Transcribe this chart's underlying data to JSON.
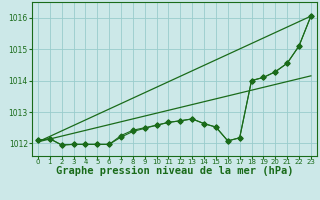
{
  "background_color": "#cce8e8",
  "plot_bg_color": "#cce8e8",
  "grid_color": "#99cccc",
  "line_color": "#1a6b1a",
  "xlabel": "Graphe pression niveau de la mer (hPa)",
  "xlabel_fontsize": 7.5,
  "ylim": [
    1011.6,
    1016.5
  ],
  "xlim": [
    -0.5,
    23.5
  ],
  "yticks": [
    1012,
    1013,
    1014,
    1015,
    1016
  ],
  "xticks": [
    0,
    1,
    2,
    3,
    4,
    5,
    6,
    7,
    8,
    9,
    10,
    11,
    12,
    13,
    14,
    15,
    16,
    17,
    18,
    19,
    20,
    21,
    22,
    23
  ],
  "series1": [
    1012.1,
    1012.15,
    1011.95,
    1011.97,
    1011.97,
    1011.97,
    1011.97,
    1012.25,
    1012.42,
    1012.5,
    1012.58,
    1012.67,
    1012.72,
    1012.78,
    1012.63,
    1012.52,
    1012.08,
    1012.18,
    1014.0,
    1014.1,
    1014.28,
    1014.55,
    1015.1,
    1016.05
  ],
  "series2": [
    1012.1,
    1012.15,
    1011.95,
    1011.97,
    1011.97,
    1011.97,
    1011.97,
    1012.2,
    1012.38,
    1012.48,
    1012.58,
    1012.67,
    1012.72,
    1012.78,
    1012.63,
    1012.52,
    1012.08,
    1012.18,
    1014.0,
    1014.1,
    1014.28,
    1014.55,
    1015.1,
    1016.05
  ],
  "trend1_x": [
    0,
    23
  ],
  "trend1_y": [
    1012.05,
    1014.15
  ],
  "trend2_x": [
    0,
    23
  ],
  "trend2_y": [
    1012.05,
    1016.05
  ],
  "marker_size": 2.5
}
